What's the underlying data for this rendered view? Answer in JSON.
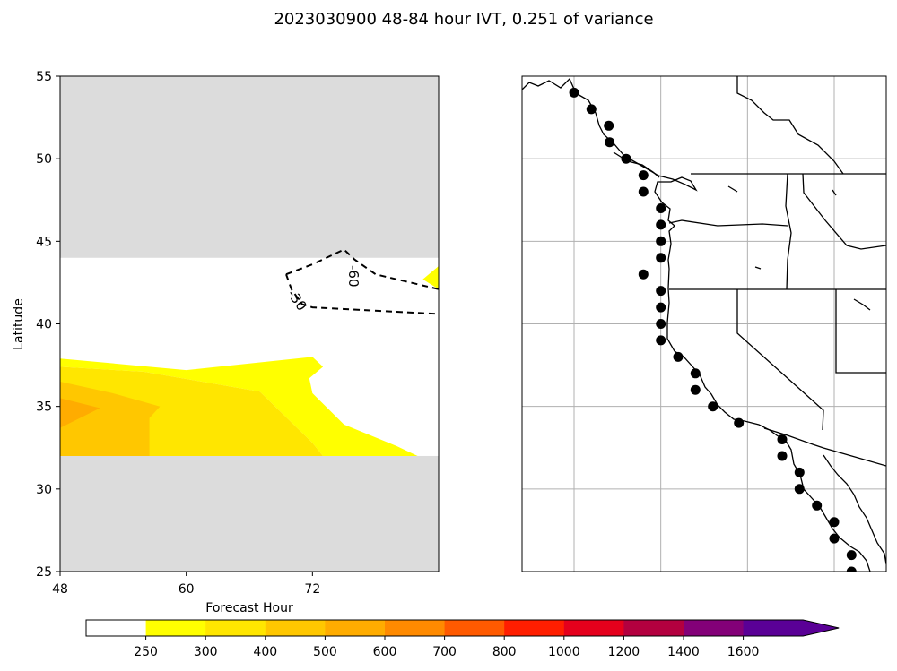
{
  "title": "2023030900 48-84 hour IVT, 0.251 of variance",
  "chart_data": [
    {
      "type": "heatmap",
      "xlabel": "Forecast Hour",
      "ylabel": "Latitude",
      "xlim": [
        48,
        84
      ],
      "ylim": [
        25,
        55
      ],
      "xticks": [
        48,
        60,
        72
      ],
      "yticks": [
        25,
        30,
        35,
        40,
        45,
        50,
        55
      ],
      "masked_bands": [
        {
          "lat": [
            44,
            55
          ]
        },
        {
          "lat": [
            25,
            32
          ]
        }
      ],
      "filled_regions": [
        {
          "level": "250-300",
          "color": "#ffff00",
          "polygon": [
            [
              48,
              37.9
            ],
            [
              48,
              37.4
            ],
            [
              56,
              37.1
            ],
            [
              67,
              35.9
            ],
            [
              72,
              32.8
            ],
            [
              73,
              32.0
            ],
            [
              82,
              32.0
            ],
            [
              80,
              32.6
            ],
            [
              75,
              33.9
            ],
            [
              72,
              35.8
            ],
            [
              71.7,
              36.7
            ],
            [
              73,
              37.4
            ],
            [
              72,
              38.0
            ],
            [
              60,
              37.2
            ]
          ]
        },
        {
          "level": "300-400",
          "color": "#ffe600",
          "polygon": [
            [
              48,
              37.4
            ],
            [
              56,
              37.1
            ],
            [
              67,
              35.9
            ],
            [
              72,
              32.8
            ],
            [
              73,
              32.0
            ],
            [
              48,
              32.0
            ]
          ]
        },
        {
          "level": "400-500",
          "color": "#ffc700",
          "polygon": [
            [
              48,
              36.5
            ],
            [
              53,
              35.8
            ],
            [
              57.5,
              35.0
            ],
            [
              56.5,
              34.3
            ],
            [
              56.5,
              32.0
            ],
            [
              48,
              32.0
            ]
          ]
        },
        {
          "level": "500-600",
          "color": "#ffac00",
          "polygon": [
            [
              48,
              35.5
            ],
            [
              51.8,
              34.9
            ],
            [
              48,
              33.7
            ]
          ]
        },
        {
          "level": "250-300",
          "color": "#ffff00",
          "polygon": [
            [
              84,
              43.5
            ],
            [
              84,
              42.1
            ],
            [
              82.5,
              42.7
            ]
          ]
        }
      ],
      "contours": [
        {
          "label": "-30",
          "style": "dashed",
          "points": [
            [
              69.5,
              43.0
            ],
            [
              70,
              42.1
            ],
            [
              71,
              41.2
            ],
            [
              72,
              41.0
            ],
            [
              84,
              40.6
            ]
          ]
        },
        {
          "label": "-60",
          "style": "dashed",
          "points": [
            [
              69.5,
              43.0
            ],
            [
              72,
              43.6
            ],
            [
              75,
              44.5
            ],
            [
              76,
              43.9
            ],
            [
              78,
              43.0
            ],
            [
              84,
              42.1
            ]
          ]
        }
      ]
    },
    {
      "type": "map",
      "region": "North America west coast",
      "lon_range": [
        -136,
        -94
      ],
      "lat_range": [
        25,
        55
      ],
      "gridlines_lon": [
        -130,
        -120,
        -110,
        -100
      ],
      "gridlines_lat": [
        30,
        35,
        40,
        45,
        50
      ],
      "points": [
        [
          -130,
          54
        ],
        [
          -128,
          53
        ],
        [
          -126,
          52
        ],
        [
          -125.9,
          51
        ],
        [
          -124,
          50
        ],
        [
          -122,
          49
        ],
        [
          -122,
          48
        ],
        [
          -120,
          47
        ],
        [
          -120,
          46
        ],
        [
          -120,
          45
        ],
        [
          -120,
          44
        ],
        [
          -122,
          43
        ],
        [
          -120,
          42
        ],
        [
          -120,
          41
        ],
        [
          -120,
          40
        ],
        [
          -120,
          39
        ],
        [
          -118,
          38
        ],
        [
          -116,
          37
        ],
        [
          -116,
          36
        ],
        [
          -114,
          35
        ],
        [
          -111,
          34
        ],
        [
          -106,
          33
        ],
        [
          -106,
          32
        ],
        [
          -104,
          31
        ],
        [
          -104,
          30
        ],
        [
          -102,
          29
        ],
        [
          -100,
          28
        ],
        [
          -100,
          27
        ],
        [
          -98,
          26
        ],
        [
          -98,
          25
        ]
      ],
      "point_color": "#000000"
    }
  ],
  "colorbar": {
    "tick_labels": [
      "250",
      "300",
      "400",
      "500",
      "600",
      "700",
      "800",
      "1000",
      "1200",
      "1400",
      "1600"
    ],
    "colors": [
      "#ffffff",
      "#ffff00",
      "#ffe600",
      "#ffc700",
      "#ffac00",
      "#ff8a00",
      "#ff5a00",
      "#ff1e00",
      "#e5001c",
      "#b3003f",
      "#830078",
      "#5a0096"
    ],
    "extend": "max"
  }
}
